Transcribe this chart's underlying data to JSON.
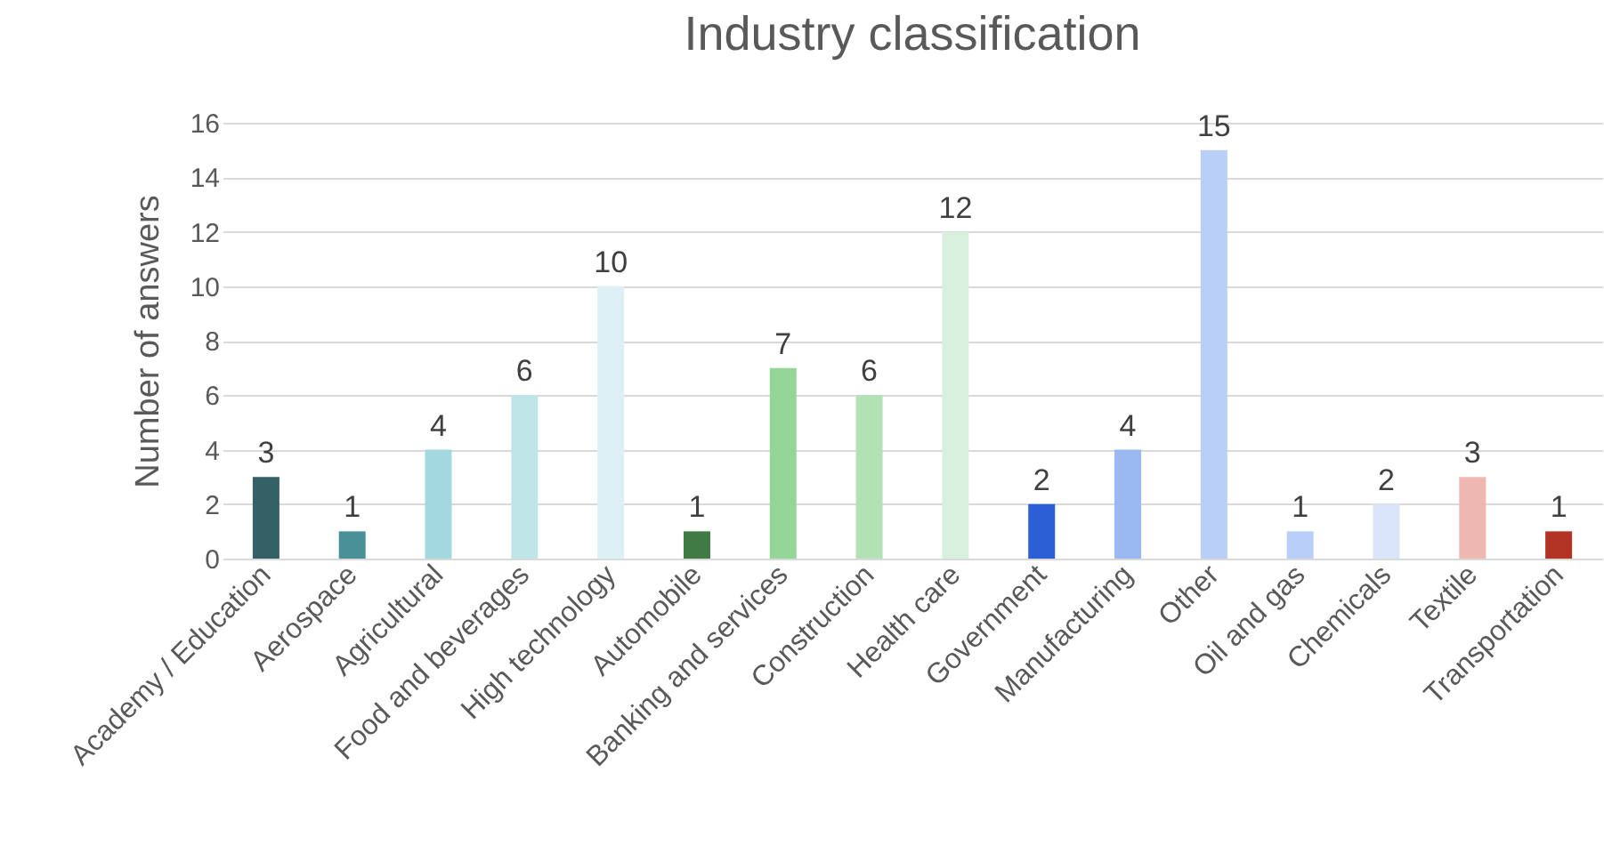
{
  "chart_data": {
    "type": "bar",
    "title": "Industry classification",
    "ylabel": "Number of answers",
    "categories": [
      "Academy / Education",
      "Aerospace",
      "Agricultural",
      "Food and beverages",
      "High technology",
      "Automobile",
      "Banking and services",
      "Construction",
      "Health care",
      "Government",
      "Manufacturing",
      "Other",
      "Oil and gas",
      "Chemicals",
      "Textile",
      "Transportation"
    ],
    "values": [
      3,
      1,
      4,
      6,
      10,
      1,
      7,
      6,
      12,
      2,
      4,
      15,
      1,
      2,
      3,
      1
    ],
    "colors": [
      "#336166",
      "#4a9098",
      "#a2d8de",
      "#c0e5e9",
      "#ddf0f5",
      "#3f7b43",
      "#93d697",
      "#b2e1b6",
      "#daf0de",
      "#2c5fd5",
      "#9ab9f3",
      "#bacff7",
      "#b8cdf7",
      "#dbe5fa",
      "#eeb8b0",
      "#b23324"
    ],
    "ylim": [
      0,
      16
    ],
    "yticks": [
      0,
      2,
      4,
      6,
      8,
      10,
      12,
      14,
      16
    ],
    "grid": "y",
    "data_labels": true
  }
}
